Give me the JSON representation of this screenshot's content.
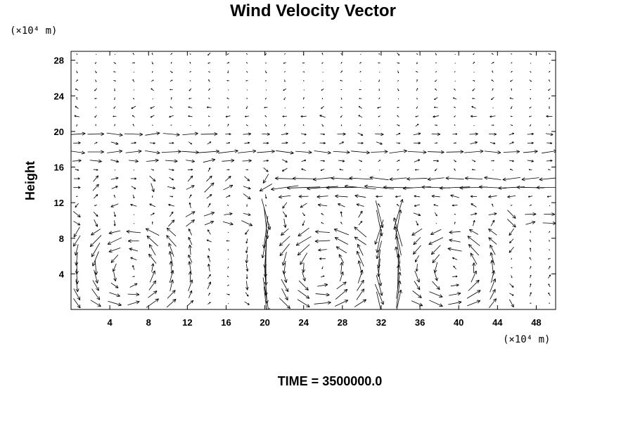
{
  "chart_data": {
    "type": "vector-field",
    "title": "Wind Velocity Vector",
    "ylabel": "Height",
    "x_unit_label": "(×10⁴ m)",
    "y_unit_label": "(×10⁴ m)",
    "xlim": [
      0,
      50
    ],
    "ylim": [
      0,
      29
    ],
    "x_ticks": [
      "4",
      "8",
      "12",
      "16",
      "20",
      "24",
      "28",
      "32",
      "36",
      "40",
      "44",
      "48"
    ],
    "y_ticks": [
      "4",
      "8",
      "12",
      "16",
      "20",
      "24",
      "28"
    ],
    "grid": false,
    "time_label": "TIME = 3500000.0",
    "features": {
      "upper_jet_heights": [
        20,
        18,
        17
      ],
      "middle_jet_heights": [
        14,
        15
      ],
      "vortex_centers_x": [
        6,
        26,
        39
      ],
      "downdraft_columns_x": [
        20,
        32,
        34,
        46
      ]
    }
  }
}
